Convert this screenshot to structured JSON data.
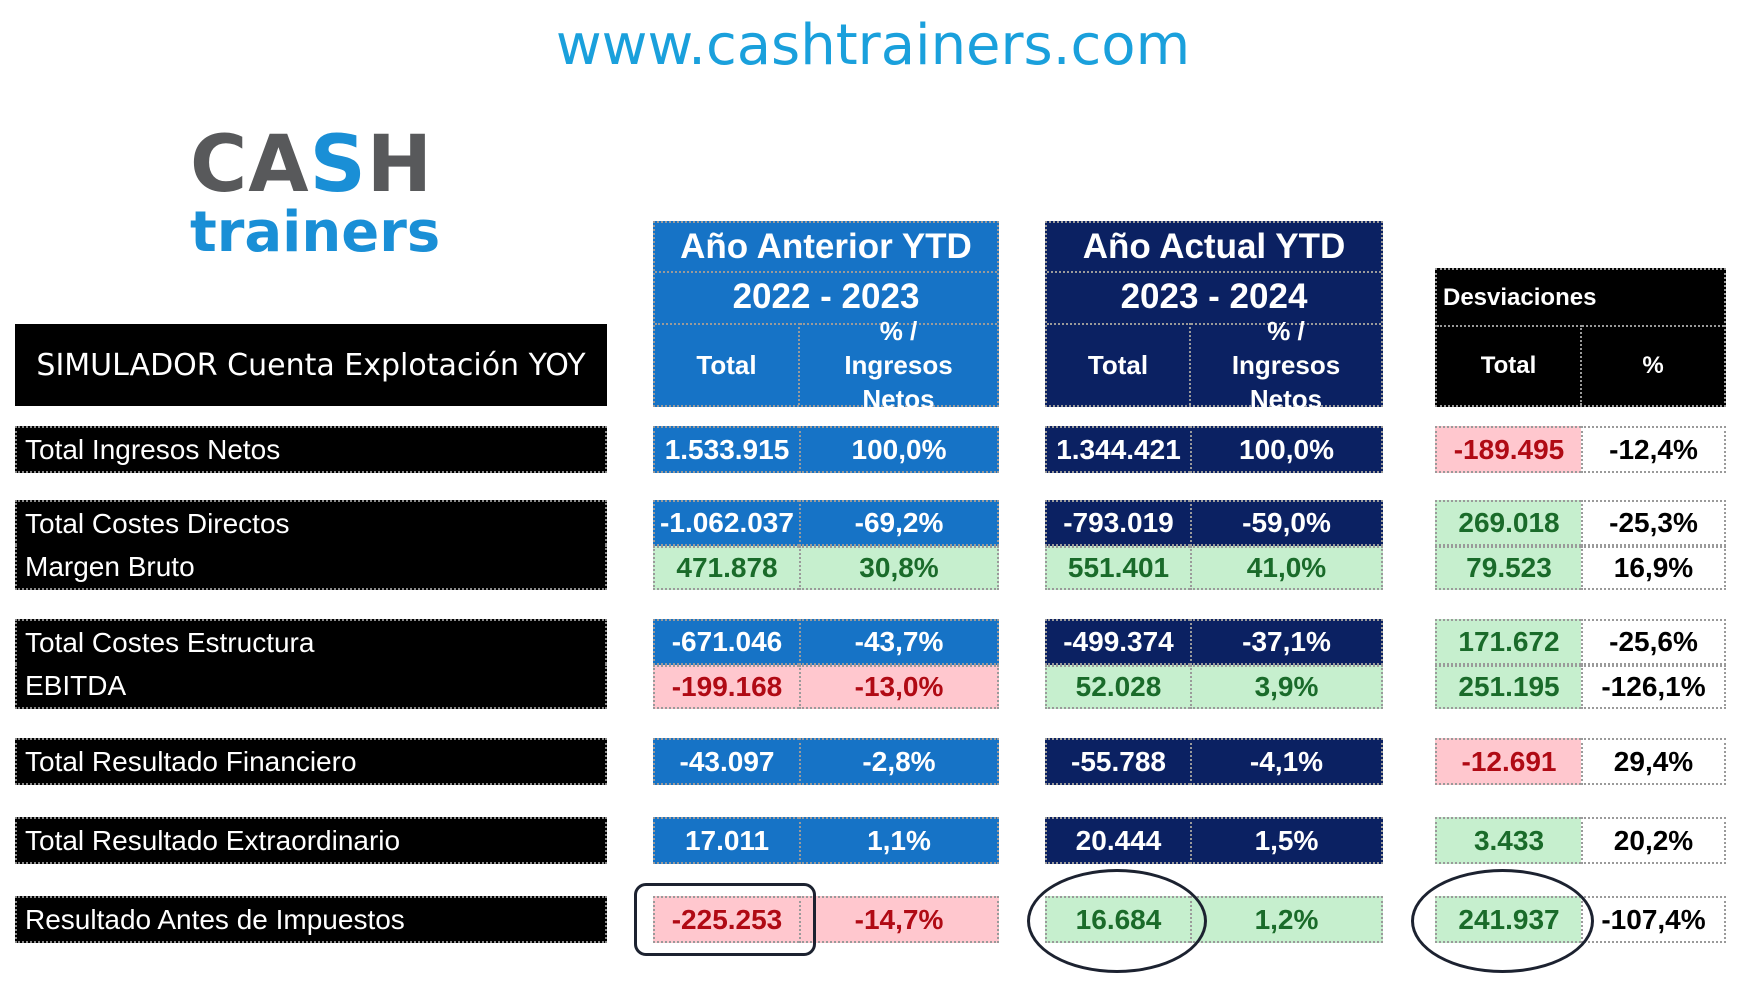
{
  "website": "www.cashtrainers.com",
  "logo": {
    "line1_pre": "CA",
    "line1_accent": "S",
    "line1_post": "H",
    "line2": "trainers"
  },
  "simulator_title": "SIMULADOR Cuenta Explotación YOY",
  "headers": {
    "previous": {
      "title": "Año Anterior YTD",
      "years": "2022 - 2023",
      "col_total": "Total",
      "col_pct": "% / Ingresos Netos"
    },
    "current": {
      "title": "Año Actual YTD",
      "years": "2023 - 2024",
      "col_total": "Total",
      "col_pct": "% / Ingresos Netos"
    },
    "deviations": {
      "title": "Desviaciones",
      "col_total": "Total",
      "col_pct": "%"
    }
  },
  "rows": [
    {
      "label": "Total Ingresos Netos",
      "prev_total": "1.533.915",
      "prev_pct": "100,0%",
      "curr_total": "1.344.421",
      "curr_pct": "100,0%",
      "dev_total": "-189.495",
      "dev_pct": "-12,4%"
    },
    {
      "label": "Total Costes Directos",
      "prev_total": "-1.062.037",
      "prev_pct": "-69,2%",
      "curr_total": "-793.019",
      "curr_pct": "-59,0%",
      "dev_total": "269.018",
      "dev_pct": "-25,3%"
    },
    {
      "label": "Margen Bruto",
      "prev_total": "471.878",
      "prev_pct": "30,8%",
      "curr_total": "551.401",
      "curr_pct": "41,0%",
      "dev_total": "79.523",
      "dev_pct": "16,9%"
    },
    {
      "label": "Total Costes Estructura",
      "prev_total": "-671.046",
      "prev_pct": "-43,7%",
      "curr_total": "-499.374",
      "curr_pct": "-37,1%",
      "dev_total": "171.672",
      "dev_pct": "-25,6%"
    },
    {
      "label": "EBITDA",
      "prev_total": "-199.168",
      "prev_pct": "-13,0%",
      "curr_total": "52.028",
      "curr_pct": "3,9%",
      "dev_total": "251.195",
      "dev_pct": "-126,1%"
    },
    {
      "label": "Total Resultado Financiero",
      "prev_total": "-43.097",
      "prev_pct": "-2,8%",
      "curr_total": "-55.788",
      "curr_pct": "-4,1%",
      "dev_total": "-12.691",
      "dev_pct": "29,4%"
    },
    {
      "label": "Total Resultado Extraordinario",
      "prev_total": "17.011",
      "prev_pct": "1,1%",
      "curr_total": "20.444",
      "curr_pct": "1,5%",
      "dev_total": "3.433",
      "dev_pct": "20,2%"
    },
    {
      "label": "Resultado Antes de Impuestos",
      "prev_total": "-225.253",
      "prev_pct": "-14,7%",
      "curr_total": "16.684",
      "curr_pct": "1,2%",
      "dev_total": "241.937",
      "dev_pct": "-107,4%"
    }
  ],
  "colors": {
    "website": "#1aa0dc",
    "logo_gray": "#58595b",
    "logo_blue": "#1a8fd6",
    "prev_blue": "#1673c6",
    "curr_navy": "#0b2162",
    "positive_fill": "#c6efce",
    "positive_text": "#1a6b2a",
    "negative_fill": "#ffc7ce",
    "negative_text": "#b00a14"
  }
}
